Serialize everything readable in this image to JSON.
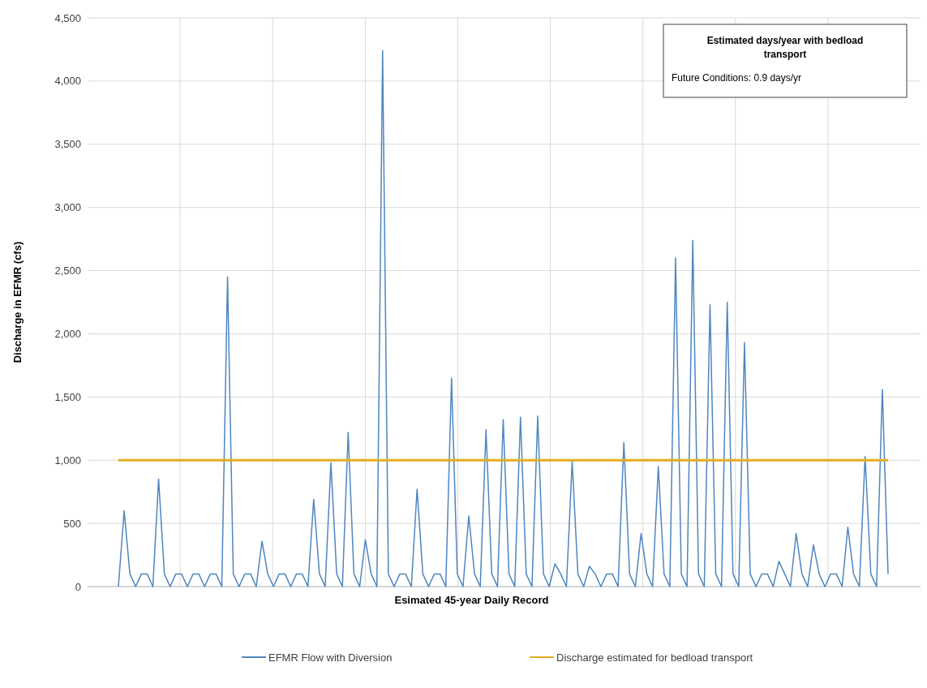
{
  "chart_data": {
    "type": "line",
    "xlabel": "Esimated 45-year Daily Record",
    "ylabel": "Discharge in EFMR (cfs)",
    "categories": [
      null,
      null,
      null,
      null,
      null,
      null,
      null,
      null,
      null,
      null,
      null,
      null,
      null,
      null,
      null,
      null,
      null,
      null,
      null,
      null,
      null,
      null,
      null,
      null,
      null,
      null,
      null,
      null,
      null,
      null,
      null,
      null,
      null,
      null,
      null,
      null,
      null,
      null,
      null,
      null,
      null,
      null,
      null,
      null,
      null,
      null,
      null,
      null,
      null,
      null,
      null,
      null,
      null,
      null,
      null,
      null,
      null,
      null,
      null,
      null,
      null,
      null,
      null,
      null,
      null,
      null,
      null,
      null,
      null,
      null,
      null,
      null,
      null,
      null,
      null,
      null,
      null,
      null,
      null,
      null,
      null,
      null,
      null,
      null,
      null,
      null,
      null,
      null,
      null,
      null,
      null,
      null,
      null,
      null,
      null,
      null,
      null,
      null,
      null,
      null,
      null,
      null,
      null,
      null,
      null,
      null,
      null,
      null,
      null,
      null,
      null,
      null,
      null,
      null,
      null,
      null,
      null,
      null,
      null,
      null,
      null,
      null,
      null,
      null,
      null,
      null,
      null,
      null,
      null,
      null,
      null,
      null,
      null,
      null,
      null
    ],
    "series": [
      {
        "name": "EFMR Flow with Diversion",
        "color": "#4f86c0",
        "values": [
          0,
          600,
          100,
          0,
          100,
          100,
          0,
          850,
          100,
          0,
          100,
          100,
          0,
          100,
          100,
          0,
          100,
          100,
          0,
          2450,
          100,
          0,
          100,
          100,
          0,
          360,
          100,
          0,
          100,
          100,
          0,
          100,
          100,
          0,
          690,
          100,
          0,
          980,
          100,
          0,
          1220,
          100,
          0,
          370,
          100,
          0,
          4240,
          100,
          0,
          100,
          100,
          0,
          770,
          100,
          0,
          100,
          100,
          0,
          1650,
          100,
          0,
          560,
          100,
          0,
          1240,
          100,
          0,
          1320,
          100,
          0,
          1340,
          100,
          0,
          1350,
          100,
          0,
          180,
          100,
          0,
          990,
          100,
          0,
          160,
          100,
          0,
          100,
          100,
          0,
          1140,
          100,
          0,
          420,
          100,
          0,
          950,
          100,
          0,
          2600,
          100,
          0,
          2740,
          100,
          0,
          2230,
          100,
          0,
          2250,
          100,
          0,
          1930,
          100,
          0,
          100,
          100,
          0,
          200,
          100,
          0,
          420,
          100,
          0,
          330,
          100,
          0,
          100,
          100,
          0,
          470,
          100,
          0,
          1030,
          100,
          0,
          1560,
          100
        ]
      }
    ],
    "ylim": [
      0,
      4500
    ],
    "yticks": [
      {
        "value": 0,
        "label": "0"
      },
      {
        "value": 500,
        "label": "500"
      },
      {
        "value": 1000,
        "label": "1,000"
      },
      {
        "value": 1500,
        "label": "1,500"
      },
      {
        "value": 2000,
        "label": "2,000"
      },
      {
        "value": 2500,
        "label": "2,500"
      },
      {
        "value": 3000,
        "label": "3,000"
      },
      {
        "value": 3500,
        "label": "3,500"
      },
      {
        "value": 4000,
        "label": "4,000"
      },
      {
        "value": 4500,
        "label": "4,500"
      }
    ],
    "ref_lines": [
      {
        "axis": "y",
        "value": 1000,
        "label": "Discharge estimated for bedload transport",
        "color": "#e3ad1e"
      }
    ],
    "annotations": [
      "Estimated days/year with bedload transport",
      "Future Conditions: 0.9 days/yr"
    ],
    "grid": true,
    "legend": "bottom",
    "line_style": "solid",
    "marker": "none"
  }
}
